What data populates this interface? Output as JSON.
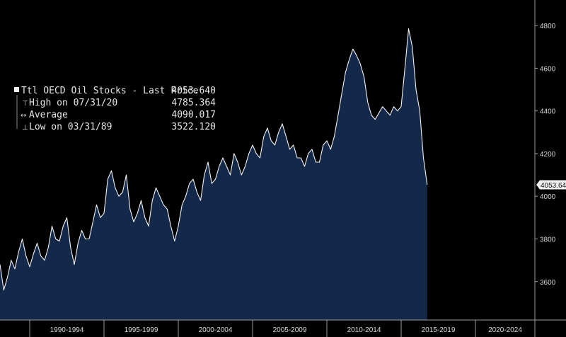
{
  "chart_data": {
    "type": "area",
    "series": [
      {
        "name": "Ttl OECD Oil Stocks",
        "x_start": 1988.0,
        "x_step": 0.25,
        "values": [
          3680,
          3560,
          3620,
          3700,
          3660,
          3740,
          3800,
          3720,
          3670,
          3730,
          3780,
          3720,
          3700,
          3760,
          3860,
          3800,
          3790,
          3860,
          3900,
          3760,
          3680,
          3780,
          3840,
          3800,
          3800,
          3880,
          3960,
          3900,
          3920,
          4080,
          4120,
          4040,
          4000,
          4020,
          4100,
          3940,
          3880,
          3920,
          3980,
          3900,
          3860,
          3980,
          4040,
          4000,
          3960,
          3940,
          3860,
          3790,
          3860,
          3960,
          4000,
          4060,
          4080,
          4020,
          3980,
          4100,
          4160,
          4060,
          4080,
          4140,
          4180,
          4140,
          4100,
          4200,
          4160,
          4100,
          4140,
          4200,
          4240,
          4200,
          4180,
          4280,
          4320,
          4260,
          4240,
          4300,
          4340,
          4280,
          4220,
          4240,
          4180,
          4180,
          4140,
          4200,
          4220,
          4160,
          4160,
          4240,
          4260,
          4220,
          4280,
          4380,
          4480,
          4580,
          4640,
          4690,
          4660,
          4620,
          4560,
          4440,
          4380,
          4360,
          4390,
          4420,
          4400,
          4380,
          4420,
          4400,
          4420,
          4600,
          4785.364,
          4700,
          4500,
          4400,
          4180,
          4053.64
        ]
      }
    ],
    "x_category_labels": [
      "1990-1994",
      "1995-1999",
      "2000-2004",
      "2005-2009",
      "2010-2014",
      "2015-2019",
      "2020-2024"
    ],
    "x_category_starts": [
      1990,
      1995,
      2000,
      2005,
      2010,
      2015,
      2020
    ],
    "xlim": [
      1988.0,
      2024.0
    ],
    "ylim": [
      3420,
      4900
    ],
    "yticks": [
      3600,
      3800,
      4000,
      4200,
      4400,
      4600,
      4800
    ],
    "last_value_label": "4053.640",
    "grid": false,
    "legend": {
      "placement": "top-left",
      "rows": [
        {
          "symbol": "▪",
          "label": "Ttl OECD Oil Stocks - Last Price",
          "value": "4053.640"
        },
        {
          "symbol": "⊤",
          "label": "High on 07/31/20",
          "value": "4785.364"
        },
        {
          "symbol": "↔",
          "label": "Average",
          "value": "4090.017"
        },
        {
          "symbol": "⊥",
          "label": "Low on 03/31/89",
          "value": "3522.120"
        }
      ]
    },
    "colors": {
      "background": "#000000",
      "area_fill": "#14294a",
      "line": "#f2f2f2",
      "axis": "#9a9a9a",
      "text": "#d8d8d8"
    }
  }
}
